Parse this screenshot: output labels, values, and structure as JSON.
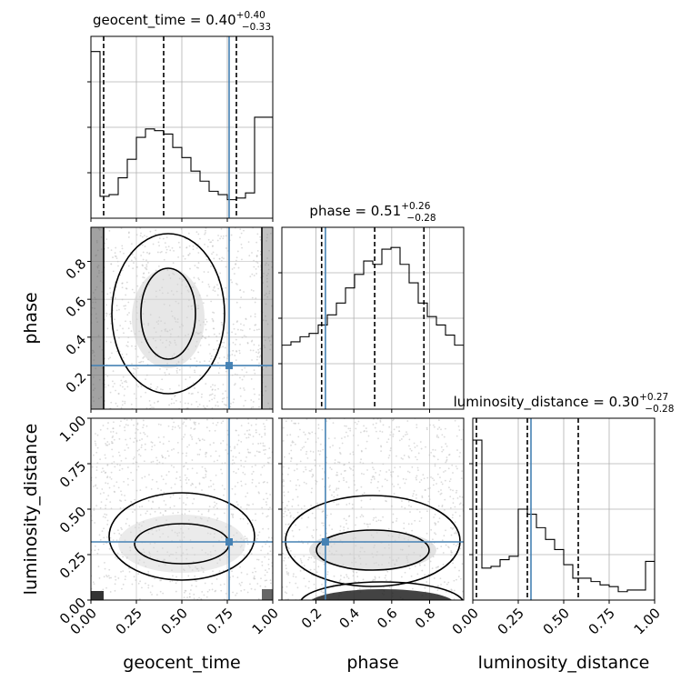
{
  "chart_data": {
    "type": "corner",
    "parameters": [
      "geocent_time",
      "phase",
      "luminosity_distance"
    ],
    "truth": {
      "geocent_time": 0.76,
      "phase": 0.25,
      "luminosity_distance": 0.32
    },
    "truth_color": "#4682b4",
    "grid": true,
    "diagonal": [
      {
        "name": "geocent_time",
        "title": {
          "base": "geocent_time = 0.40",
          "plus": "+0.40",
          "minus": "−0.33"
        },
        "quantiles": [
          0.07,
          0.4,
          0.8
        ],
        "xlim": [
          0,
          1
        ],
        "bins_x": [
          0.0,
          0.05,
          0.1,
          0.15,
          0.2,
          0.25,
          0.3,
          0.35,
          0.4,
          0.45,
          0.5,
          0.55,
          0.6,
          0.65,
          0.7,
          0.75,
          0.8,
          0.85,
          0.9,
          0.95
        ],
        "counts": [
          0.99,
          0.13,
          0.14,
          0.24,
          0.35,
          0.48,
          0.53,
          0.52,
          0.5,
          0.42,
          0.36,
          0.28,
          0.22,
          0.16,
          0.14,
          0.11,
          0.12,
          0.15,
          0.6,
          0.6
        ],
        "ymax": 1.0
      },
      {
        "name": "phase",
        "title": {
          "base": "phase = 0.51",
          "plus": "+0.26",
          "minus": "−0.28"
        },
        "quantiles": [
          0.23,
          0.51,
          0.77
        ],
        "xlim": [
          0.02,
          0.98
        ],
        "bins_x": [
          0.02,
          0.068,
          0.116,
          0.164,
          0.212,
          0.26,
          0.308,
          0.356,
          0.404,
          0.452,
          0.5,
          0.548,
          0.596,
          0.644,
          0.692,
          0.74,
          0.788,
          0.836,
          0.884,
          0.932
        ],
        "counts": [
          0.38,
          0.4,
          0.43,
          0.45,
          0.5,
          0.56,
          0.63,
          0.72,
          0.8,
          0.88,
          0.86,
          0.95,
          0.96,
          0.86,
          0.75,
          0.63,
          0.55,
          0.5,
          0.44,
          0.38
        ],
        "ymax": 1.0
      },
      {
        "name": "luminosity_distance",
        "title": {
          "base": "luminosity_distance = 0.30",
          "plus": "+0.27",
          "minus": "−0.28"
        },
        "quantiles": [
          0.02,
          0.3,
          0.58
        ],
        "xlim": [
          0,
          1
        ],
        "bins_x": [
          0.0,
          0.05,
          0.1,
          0.15,
          0.2,
          0.25,
          0.3,
          0.35,
          0.4,
          0.45,
          0.5,
          0.55,
          0.6,
          0.65,
          0.7,
          0.75,
          0.8,
          0.85,
          0.9,
          0.95
        ],
        "counts": [
          0.95,
          0.19,
          0.2,
          0.24,
          0.26,
          0.54,
          0.51,
          0.43,
          0.36,
          0.3,
          0.21,
          0.13,
          0.13,
          0.11,
          0.09,
          0.08,
          0.05,
          0.06,
          0.06,
          0.23
        ],
        "ymax": 1.0
      }
    ],
    "ticks": {
      "geocent_time": [
        "0.00",
        "0.25",
        "0.50",
        "0.75",
        "1.00"
      ],
      "phase": [
        "0.2",
        "0.4",
        "0.6",
        "0.8"
      ],
      "luminosity_distance": [
        "0.00",
        "0.25",
        "0.50",
        "0.75",
        "1.00"
      ]
    },
    "tick_values": {
      "geocent_time": [
        0,
        0.25,
        0.5,
        0.75,
        1.0
      ],
      "phase": [
        0.2,
        0.4,
        0.6,
        0.8
      ],
      "luminosity_distance": [
        0,
        0.25,
        0.5,
        0.75,
        1.0
      ]
    },
    "phase_range": [
      0.02,
      0.98
    ],
    "xlabels": [
      "geocent_time",
      "phase",
      "luminosity_distance"
    ],
    "ylabels": [
      "phase",
      "luminosity_distance"
    ]
  }
}
